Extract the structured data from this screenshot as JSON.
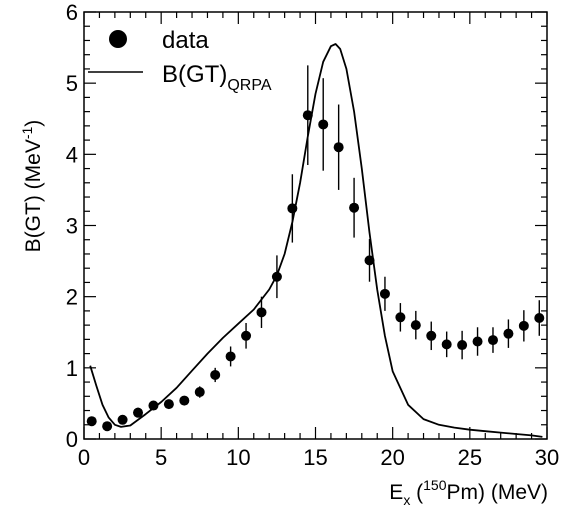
{
  "chart_data": {
    "type": "scatter",
    "xlim": [
      0,
      30
    ],
    "ylim": [
      0,
      6
    ],
    "x_ticks": [
      0,
      5,
      10,
      15,
      20,
      25,
      30
    ],
    "y_ticks": [
      0,
      1,
      2,
      3,
      4,
      5,
      6
    ],
    "grid": false,
    "legend_position": "top-left",
    "xlabel": {
      "base": "E",
      "base_sub": "x",
      "open": " (",
      "sup": "150",
      "rest": "Pm) (MeV)"
    },
    "ylabel": {
      "main": "B(GT) (MeV",
      "sup": "-1",
      "close": ")"
    },
    "series": [
      {
        "name": "data",
        "kind": "points-with-errors",
        "color": "#000000",
        "x": [
          0.5,
          1.5,
          2.5,
          3.5,
          4.5,
          5.5,
          6.5,
          7.5,
          8.5,
          9.5,
          10.5,
          11.5,
          12.5,
          13.5,
          14.5,
          15.5,
          16.5,
          17.5,
          18.5,
          19.5,
          20.5,
          21.5,
          22.5,
          23.5,
          24.5,
          25.5,
          26.5,
          27.5,
          28.5,
          29.5
        ],
        "y": [
          0.25,
          0.18,
          0.27,
          0.37,
          0.47,
          0.49,
          0.54,
          0.66,
          0.9,
          1.16,
          1.45,
          1.78,
          2.28,
          3.24,
          4.55,
          4.42,
          4.1,
          3.25,
          2.51,
          2.04,
          1.71,
          1.6,
          1.45,
          1.33,
          1.32,
          1.37,
          1.39,
          1.48,
          1.59,
          1.7
        ],
        "err": [
          0.03,
          0.04,
          0.06,
          0.07,
          0.06,
          0.06,
          0.06,
          0.08,
          0.1,
          0.14,
          0.18,
          0.22,
          0.3,
          0.48,
          0.7,
          0.65,
          0.6,
          0.42,
          0.3,
          0.24,
          0.2,
          0.2,
          0.2,
          0.18,
          0.2,
          0.2,
          0.18,
          0.2,
          0.22,
          0.25
        ]
      },
      {
        "name_main": "B(GT)",
        "name_sub": "QRPA",
        "kind": "line",
        "color": "#000000",
        "x": [
          0.4,
          0.8,
          1.2,
          1.6,
          2.0,
          2.4,
          3.0,
          4.0,
          5.0,
          6.0,
          7.0,
          8.0,
          9.0,
          10.0,
          11.0,
          12.0,
          12.5,
          13.0,
          13.5,
          14.0,
          14.5,
          15.0,
          15.5,
          16.0,
          16.3,
          16.6,
          17.0,
          17.5,
          18.0,
          18.5,
          19.0,
          19.5,
          20.0,
          21.0,
          22.0,
          23.0,
          24.0,
          25.0,
          26.0,
          27.0,
          28.0,
          29.0,
          29.7
        ],
        "y": [
          1.03,
          0.75,
          0.48,
          0.3,
          0.2,
          0.17,
          0.19,
          0.35,
          0.52,
          0.72,
          0.96,
          1.2,
          1.42,
          1.62,
          1.82,
          2.1,
          2.3,
          2.6,
          3.05,
          3.6,
          4.25,
          4.85,
          5.3,
          5.52,
          5.55,
          5.48,
          5.2,
          4.6,
          3.8,
          2.9,
          2.1,
          1.45,
          0.95,
          0.48,
          0.28,
          0.2,
          0.16,
          0.13,
          0.11,
          0.09,
          0.07,
          0.05,
          0.03
        ]
      }
    ]
  }
}
